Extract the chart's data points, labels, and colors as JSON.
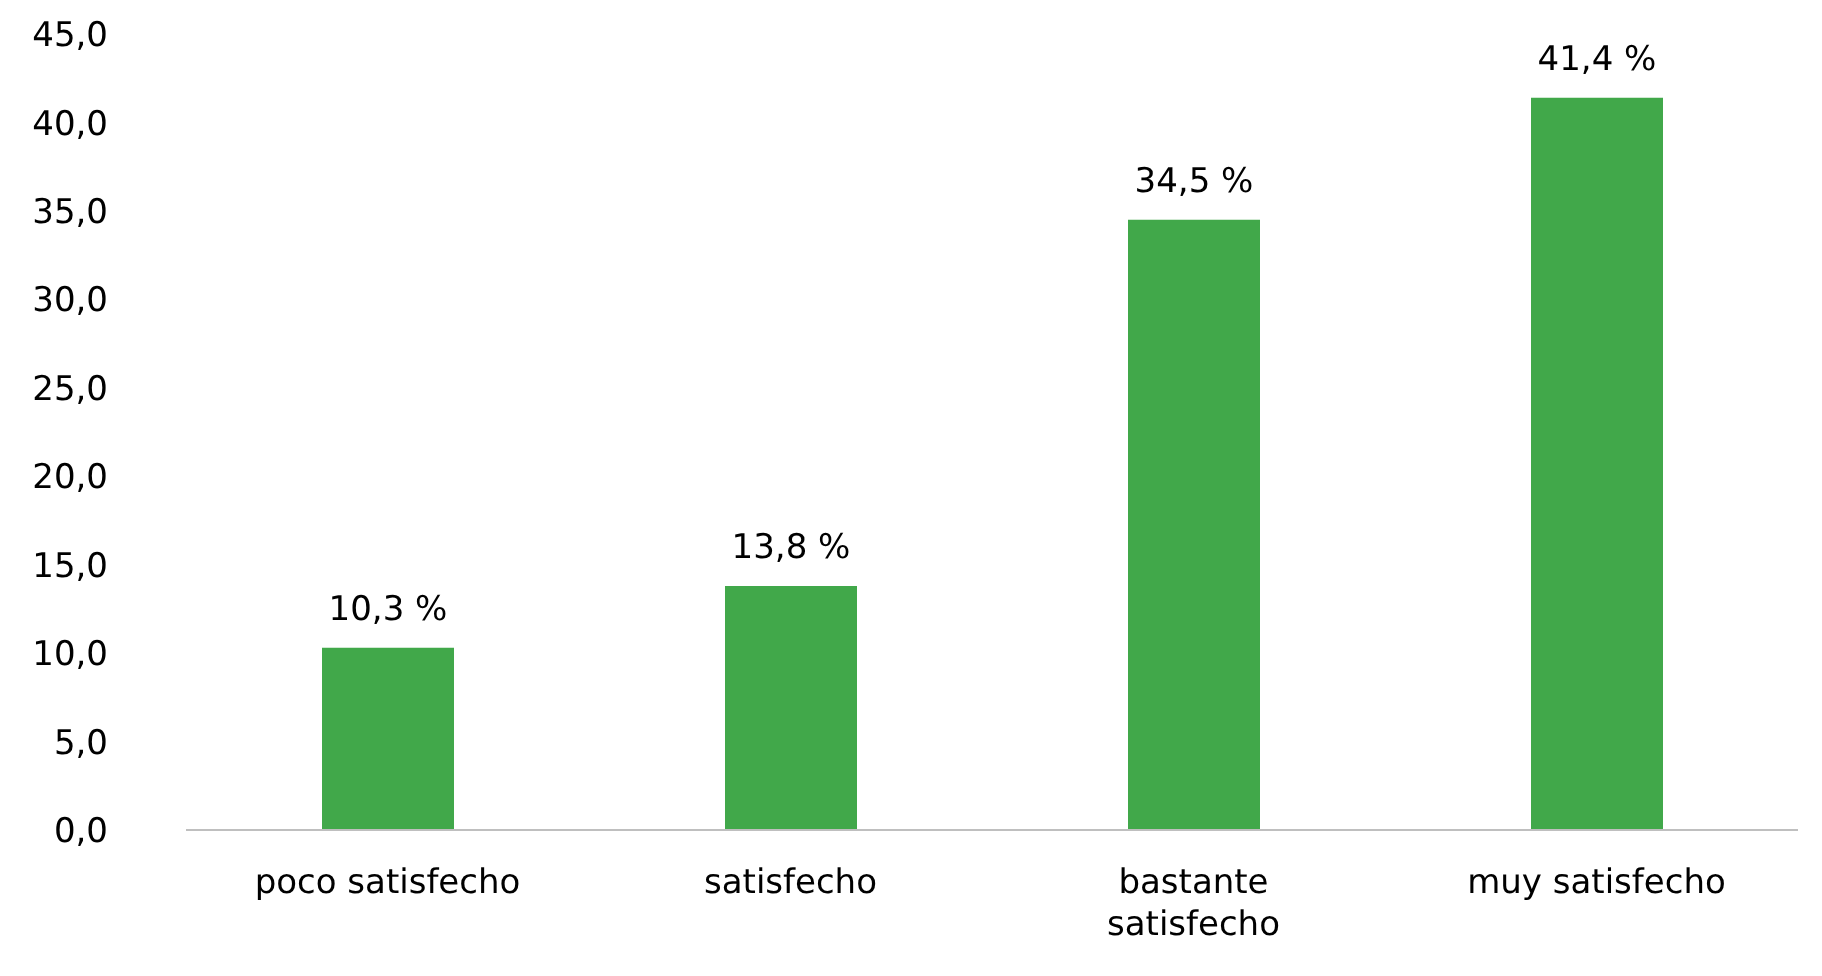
{
  "chart_data": {
    "type": "bar",
    "categories": [
      "poco satisfecho",
      "satisfecho",
      "bastante satisfecho",
      "muy satisfecho"
    ],
    "values": [
      10.3,
      13.8,
      34.5,
      41.4
    ],
    "value_labels": [
      "10,3 %",
      "13,8 %",
      "34,5 %",
      "41,4 %"
    ],
    "color": "#41a84a",
    "ylim": [
      0,
      45
    ],
    "yticks": [
      {
        "value": 0,
        "label": "0,0"
      },
      {
        "value": 5,
        "label": "5,0"
      },
      {
        "value": 10,
        "label": "10,0"
      },
      {
        "value": 15,
        "label": "15,0"
      },
      {
        "value": 20,
        "label": "20,0"
      },
      {
        "value": 25,
        "label": "25,0"
      },
      {
        "value": 30,
        "label": "30,0"
      },
      {
        "value": 35,
        "label": "35,0"
      },
      {
        "value": 40,
        "label": "40,0"
      },
      {
        "value": 45,
        "label": "45,0"
      }
    ],
    "grid": false,
    "legend": false
  }
}
